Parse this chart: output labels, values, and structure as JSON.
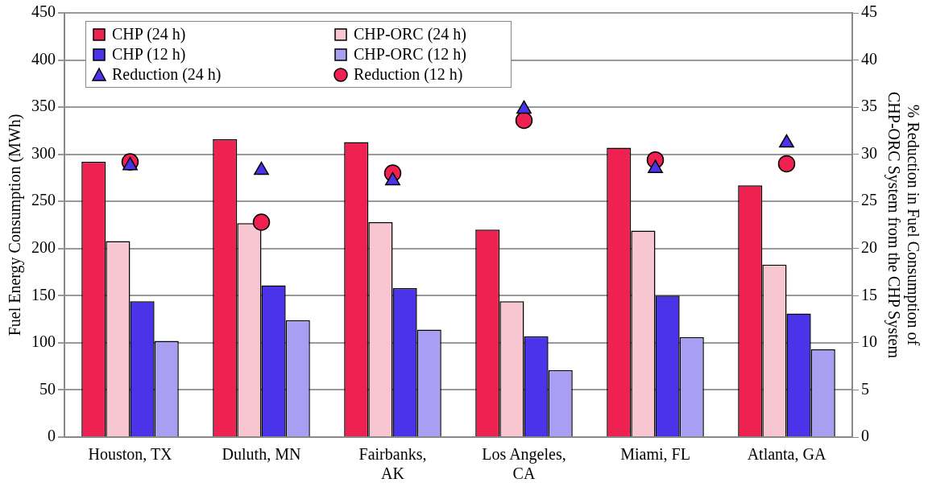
{
  "chart_data": {
    "type": "bar",
    "ylabel": "Fuel Energy Consumption (MWh)",
    "y2label": "% Reduction in Fuel Consumption of CHP-ORC System from the CHP System",
    "categories": [
      "Houston, TX",
      "Duluth, MN",
      "Fairbanks, AK",
      "Los Angeles, CA",
      "Miami, FL",
      "Atlanta, GA"
    ],
    "series": [
      {
        "name": "CHP (24 h)",
        "color": "#ee2150",
        "values": [
          292,
          316,
          313,
          220,
          307,
          267
        ]
      },
      {
        "name": "CHP-ORC (24 h)",
        "color": "#f8c6d1",
        "values": [
          208,
          227,
          228,
          144,
          219,
          183
        ]
      },
      {
        "name": "CHP (12 h)",
        "color": "#4a33e8",
        "values": [
          144,
          161,
          158,
          107,
          150,
          131
        ]
      },
      {
        "name": "CHP-ORC (12 h)",
        "color": "#a99ff2",
        "values": [
          102,
          124,
          114,
          71,
          106,
          93
        ]
      },
      {
        "name": "Reduction (24 h)",
        "type": "scatter",
        "axis": "y2",
        "marker": "triangle",
        "color": "#4a33e8",
        "values": [
          28.8,
          28.3,
          27.2,
          34.8,
          28.5,
          31.2
        ]
      },
      {
        "name": "Reduction (12 h)",
        "type": "scatter",
        "axis": "y2",
        "marker": "circle",
        "color": "#ee2150",
        "values": [
          29.2,
          22.8,
          28.0,
          33.6,
          29.4,
          29.0
        ]
      }
    ],
    "ylim": [
      0,
      450
    ],
    "yticks": [
      0,
      50,
      100,
      150,
      200,
      250,
      300,
      350,
      400,
      450
    ],
    "y2lim": [
      0,
      45
    ],
    "y2ticks": [
      0,
      5,
      10,
      15,
      20,
      25,
      30,
      35,
      40,
      45
    ],
    "grid": "y",
    "legend": "top left"
  }
}
